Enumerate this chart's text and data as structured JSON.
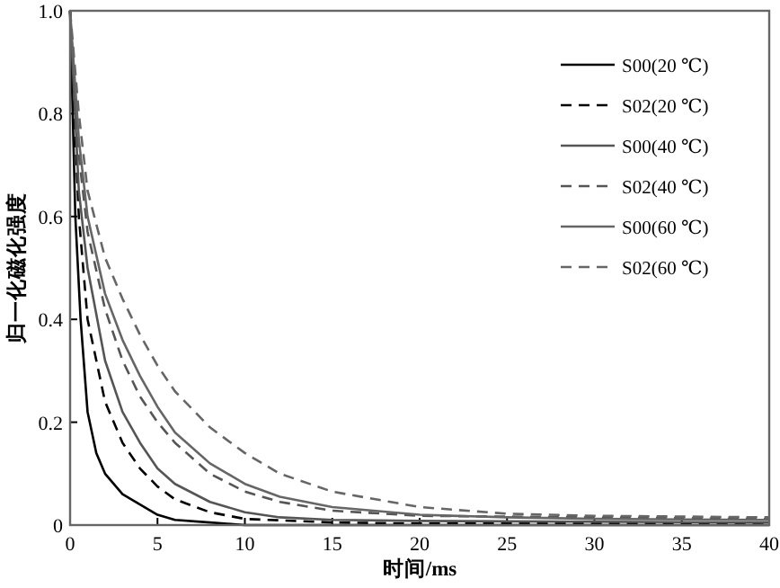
{
  "chart_data": {
    "type": "line",
    "xlabel": "时间/ms",
    "ylabel": "归一化磁化强度",
    "xlim": [
      0,
      40
    ],
    "ylim": [
      0,
      1
    ],
    "xticks": [
      0,
      5,
      10,
      15,
      20,
      25,
      30,
      35,
      40
    ],
    "yticks": [
      0,
      0.2,
      0.4,
      0.6,
      0.8,
      {
        "value": 1,
        "label": "1.0"
      }
    ],
    "legend": "top right",
    "grid": false,
    "marker": "none",
    "series": [
      {
        "name": "S00(20 ℃)",
        "color": "#000000",
        "line_style": "solid",
        "x": [
          0,
          0.3,
          0.6,
          1,
          1.5,
          2,
          3,
          4,
          5,
          6,
          8,
          10,
          40
        ],
        "values": [
          1,
          0.6,
          0.4,
          0.22,
          0.14,
          0.1,
          0.06,
          0.04,
          0.02,
          0.01,
          0.005,
          0,
          0
        ]
      },
      {
        "name": "S02(20 ℃)",
        "color": "#000000",
        "line_style": "dashed",
        "x": [
          0,
          0.5,
          1,
          2,
          3,
          4,
          5,
          6,
          8,
          10,
          15,
          20,
          40
        ],
        "values": [
          1,
          0.6,
          0.4,
          0.24,
          0.16,
          0.11,
          0.075,
          0.05,
          0.025,
          0.012,
          0.005,
          0.003,
          0.003
        ]
      },
      {
        "name": "S00(40 ℃)",
        "color": "#555555",
        "line_style": "solid",
        "x": [
          0,
          0.5,
          1,
          2,
          3,
          4,
          5,
          6,
          8,
          10,
          12,
          15,
          20,
          40
        ],
        "values": [
          1,
          0.65,
          0.5,
          0.32,
          0.22,
          0.16,
          0.11,
          0.08,
          0.045,
          0.025,
          0.015,
          0.01,
          0.008,
          0.005
        ]
      },
      {
        "name": "S02(40 ℃)",
        "color": "#555555",
        "line_style": "dashed",
        "x": [
          0,
          0.5,
          1,
          2,
          3,
          4,
          5,
          6,
          8,
          10,
          12,
          15,
          20,
          30,
          40
        ],
        "values": [
          1,
          0.72,
          0.57,
          0.42,
          0.32,
          0.25,
          0.2,
          0.16,
          0.1,
          0.065,
          0.045,
          0.028,
          0.018,
          0.015,
          0.012
        ]
      },
      {
        "name": "S00(60 ℃)",
        "color": "#666666",
        "line_style": "solid",
        "x": [
          0,
          0.5,
          1,
          2,
          3,
          4,
          5,
          6,
          8,
          10,
          12,
          15,
          20,
          25,
          30,
          40
        ],
        "values": [
          1,
          0.75,
          0.6,
          0.45,
          0.36,
          0.29,
          0.23,
          0.18,
          0.12,
          0.08,
          0.055,
          0.035,
          0.02,
          0.015,
          0.012,
          0.01
        ]
      },
      {
        "name": "S02(60 ℃)",
        "color": "#666666",
        "line_style": "dashed",
        "x": [
          0,
          0.5,
          1,
          2,
          3,
          4,
          5,
          6,
          8,
          10,
          12,
          15,
          20,
          25,
          30,
          40
        ],
        "values": [
          1,
          0.8,
          0.65,
          0.52,
          0.44,
          0.37,
          0.31,
          0.26,
          0.19,
          0.14,
          0.1,
          0.065,
          0.035,
          0.022,
          0.018,
          0.015
        ]
      }
    ]
  }
}
